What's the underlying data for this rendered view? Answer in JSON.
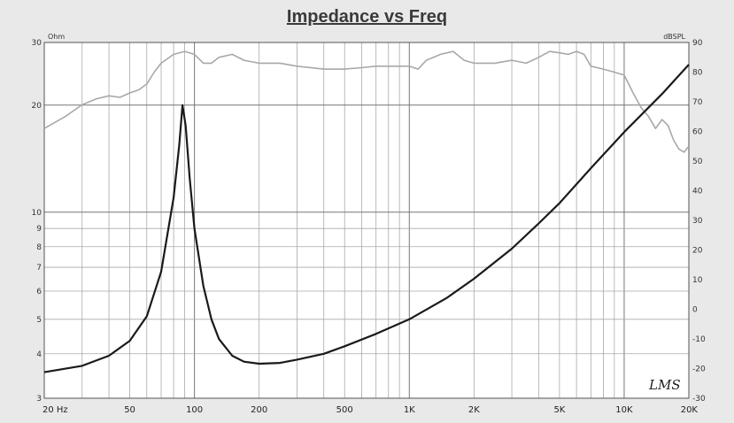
{
  "chart_data": {
    "type": "line",
    "title": "Impedance vs Freq",
    "x_scale": "log",
    "xlim": [
      20,
      20000
    ],
    "x_ticks": [
      {
        "v": 20,
        "label": "20 Hz"
      },
      {
        "v": 50,
        "label": "50"
      },
      {
        "v": 100,
        "label": "100"
      },
      {
        "v": 200,
        "label": "200"
      },
      {
        "v": 500,
        "label": "500"
      },
      {
        "v": 1000,
        "label": "1K"
      },
      {
        "v": 2000,
        "label": "2K"
      },
      {
        "v": 5000,
        "label": "5K"
      },
      {
        "v": 10000,
        "label": "10K"
      },
      {
        "v": 20000,
        "label": "20K"
      }
    ],
    "y_left": {
      "unit": "Ohm",
      "scale": "log",
      "lim": [
        3,
        30
      ],
      "ticks": [
        3,
        4,
        5,
        6,
        7,
        8,
        9,
        10,
        20,
        30
      ]
    },
    "y_right": {
      "unit": "dBSPL",
      "scale": "linear",
      "lim": [
        -30,
        90
      ],
      "ticks": [
        -30,
        -20,
        -10,
        0,
        10,
        20,
        30,
        40,
        50,
        60,
        70,
        80,
        90
      ]
    },
    "grid": true,
    "series": [
      {
        "color": "#1a1a1a",
        "axis": "left",
        "points": [
          [
            20,
            3.55
          ],
          [
            30,
            3.7
          ],
          [
            40,
            3.95
          ],
          [
            50,
            4.35
          ],
          [
            60,
            5.1
          ],
          [
            70,
            6.8
          ],
          [
            80,
            11.0
          ],
          [
            85,
            15.5
          ],
          [
            88,
            20.0
          ],
          [
            91,
            17.5
          ],
          [
            95,
            12.5
          ],
          [
            100,
            9.0
          ],
          [
            110,
            6.2
          ],
          [
            120,
            5.0
          ],
          [
            130,
            4.4
          ],
          [
            150,
            3.95
          ],
          [
            170,
            3.8
          ],
          [
            200,
            3.75
          ],
          [
            250,
            3.77
          ],
          [
            300,
            3.85
          ],
          [
            400,
            4.0
          ],
          [
            500,
            4.2
          ],
          [
            700,
            4.55
          ],
          [
            1000,
            5.0
          ],
          [
            1500,
            5.75
          ],
          [
            2000,
            6.5
          ],
          [
            3000,
            7.9
          ],
          [
            4000,
            9.3
          ],
          [
            5000,
            10.6
          ],
          [
            7000,
            13.3
          ],
          [
            10000,
            16.8
          ],
          [
            15000,
            21.5
          ],
          [
            20000,
            26.0
          ]
        ]
      },
      {
        "color": "#a8a8a8",
        "axis": "right",
        "points": [
          [
            20,
            61
          ],
          [
            25,
            65
          ],
          [
            30,
            69
          ],
          [
            35,
            71
          ],
          [
            40,
            72
          ],
          [
            45,
            71.5
          ],
          [
            50,
            73
          ],
          [
            55,
            74
          ],
          [
            60,
            76
          ],
          [
            65,
            80
          ],
          [
            70,
            83
          ],
          [
            80,
            86
          ],
          [
            90,
            87
          ],
          [
            100,
            86
          ],
          [
            110,
            83
          ],
          [
            120,
            83
          ],
          [
            130,
            85
          ],
          [
            150,
            86
          ],
          [
            170,
            84
          ],
          [
            200,
            83
          ],
          [
            250,
            83
          ],
          [
            300,
            82
          ],
          [
            400,
            81
          ],
          [
            500,
            81
          ],
          [
            600,
            81.5
          ],
          [
            700,
            82
          ],
          [
            800,
            82
          ],
          [
            900,
            82
          ],
          [
            1000,
            82
          ],
          [
            1100,
            81
          ],
          [
            1200,
            84
          ],
          [
            1400,
            86
          ],
          [
            1600,
            87
          ],
          [
            1800,
            84
          ],
          [
            2000,
            83
          ],
          [
            2500,
            83
          ],
          [
            3000,
            84
          ],
          [
            3500,
            83
          ],
          [
            4000,
            85
          ],
          [
            4500,
            87
          ],
          [
            5000,
            86.5
          ],
          [
            5500,
            86
          ],
          [
            6000,
            87
          ],
          [
            6500,
            86
          ],
          [
            7000,
            82
          ],
          [
            8000,
            81
          ],
          [
            9000,
            80
          ],
          [
            10000,
            79
          ],
          [
            11000,
            73
          ],
          [
            12000,
            68
          ],
          [
            13000,
            65
          ],
          [
            14000,
            61
          ],
          [
            15000,
            64
          ],
          [
            16000,
            62
          ],
          [
            17000,
            57
          ],
          [
            18000,
            54
          ],
          [
            19000,
            53
          ],
          [
            20000,
            55
          ]
        ]
      }
    ],
    "signature": "LMS"
  }
}
